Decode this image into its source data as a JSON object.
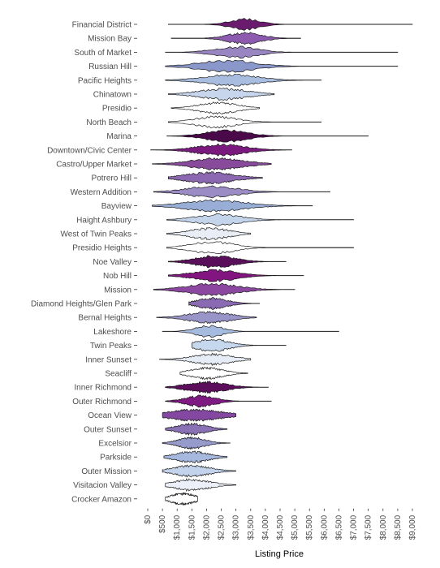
{
  "chart_data": {
    "type": "violin",
    "orientation": "horizontal",
    "xlabel": "Listing Price",
    "ylabel": "",
    "title": "",
    "xlim": [
      0,
      9000
    ],
    "x_ticks": [
      "$0",
      "$500",
      "$1,000",
      "$1,500",
      "$2,000",
      "$2,500",
      "$3,000",
      "$3,500",
      "$4,000",
      "$4,500",
      "$5,000",
      "$5,500",
      "$6,000",
      "$6,500",
      "$7,000",
      "$7,500",
      "$8,000",
      "$8,500",
      "$9,000"
    ],
    "x_tick_values": [
      0,
      500,
      1000,
      1500,
      2000,
      2500,
      3000,
      3500,
      4000,
      4500,
      5000,
      5500,
      6000,
      6500,
      7000,
      7500,
      8000,
      8500,
      9000
    ],
    "grid": false,
    "legend": "none",
    "categories": [
      {
        "name": "Financial District",
        "min": 700,
        "max": 9000,
        "center": 3300,
        "spread": 500,
        "color": "#6a1b6e"
      },
      {
        "name": "Mission Bay",
        "min": 800,
        "max": 5200,
        "center": 3300,
        "spread": 550,
        "color": "#8c5bb0"
      },
      {
        "name": "South of Market",
        "min": 600,
        "max": 8500,
        "center": 3000,
        "spread": 700,
        "color": "#9a85c3"
      },
      {
        "name": "Russian Hill",
        "min": 600,
        "max": 8500,
        "center": 2700,
        "spread": 900,
        "color": "#8a97cb"
      },
      {
        "name": "Pacific Heights",
        "min": 600,
        "max": 5900,
        "center": 2800,
        "spread": 900,
        "color": "#a8bde0"
      },
      {
        "name": "Chinatown",
        "min": 700,
        "max": 4300,
        "center": 2600,
        "spread": 800,
        "color": "#c7d6ec"
      },
      {
        "name": "Presidio",
        "min": 800,
        "max": 3800,
        "center": 2400,
        "spread": 650,
        "color": "#ffffff"
      },
      {
        "name": "North Beach",
        "min": 700,
        "max": 5900,
        "center": 2300,
        "spread": 700,
        "color": "#ffffff"
      },
      {
        "name": "Marina",
        "min": 650,
        "max": 7500,
        "center": 2700,
        "spread": 700,
        "color": "#4a0a4a"
      },
      {
        "name": "Downtown/Civic Center",
        "min": 100,
        "max": 4900,
        "center": 2500,
        "spread": 800,
        "color": "#7a1a7e"
      },
      {
        "name": "Castro/Upper Market",
        "min": 150,
        "max": 4200,
        "center": 2400,
        "spread": 850,
        "color": "#884b9c"
      },
      {
        "name": "Potrero Hill",
        "min": 700,
        "max": 3900,
        "center": 2100,
        "spread": 800,
        "color": "#8b68b1"
      },
      {
        "name": "Western Addition",
        "min": 200,
        "max": 6200,
        "center": 2200,
        "spread": 850,
        "color": "#9b8cc6"
      },
      {
        "name": "Bayview",
        "min": 150,
        "max": 5600,
        "center": 2300,
        "spread": 1000,
        "color": "#98aed6"
      },
      {
        "name": "Haight Ashbury",
        "min": 650,
        "max": 7000,
        "center": 2400,
        "spread": 750,
        "color": "#c4d5eb"
      },
      {
        "name": "West of Twin Peaks",
        "min": 650,
        "max": 3500,
        "center": 2100,
        "spread": 650,
        "color": "#e8edf6"
      },
      {
        "name": "Presidio Heights",
        "min": 650,
        "max": 7000,
        "center": 2200,
        "spread": 700,
        "color": "#ffffff"
      },
      {
        "name": "Noe Valley",
        "min": 700,
        "max": 4700,
        "center": 2300,
        "spread": 650,
        "color": "#5a0f5a"
      },
      {
        "name": "Nob Hill",
        "min": 700,
        "max": 5300,
        "center": 2300,
        "spread": 750,
        "color": "#82157f"
      },
      {
        "name": "Mission",
        "min": 200,
        "max": 5000,
        "center": 2200,
        "spread": 850,
        "color": "#8c48a0"
      },
      {
        "name": "Diamond Heights/Glen Park",
        "min": 1400,
        "max": 3800,
        "center": 2200,
        "spread": 500,
        "color": "#8a6ab2"
      },
      {
        "name": "Bernal Heights",
        "min": 300,
        "max": 3700,
        "center": 2100,
        "spread": 700,
        "color": "#9a95c9"
      },
      {
        "name": "Lakeshore",
        "min": 500,
        "max": 6500,
        "center": 2100,
        "spread": 450,
        "color": "#a6bbe0"
      },
      {
        "name": "Twin Peaks",
        "min": 1500,
        "max": 4700,
        "center": 2200,
        "spread": 550,
        "color": "#c6d8ee"
      },
      {
        "name": "Inner Sunset",
        "min": 400,
        "max": 3500,
        "center": 2200,
        "spread": 650,
        "color": "#e7edf7"
      },
      {
        "name": "Seacliff",
        "min": 1100,
        "max": 3400,
        "center": 2000,
        "spread": 550,
        "color": "#ffffff"
      },
      {
        "name": "Inner Richmond",
        "min": 600,
        "max": 4100,
        "center": 2000,
        "spread": 650,
        "color": "#5c0d5c"
      },
      {
        "name": "Outer Richmond",
        "min": 600,
        "max": 4200,
        "center": 1800,
        "spread": 500,
        "color": "#7e1a82"
      },
      {
        "name": "Ocean View",
        "min": 500,
        "max": 3000,
        "center": 1600,
        "spread": 900,
        "color": "#8548a2"
      },
      {
        "name": "Outer Sunset",
        "min": 600,
        "max": 2700,
        "center": 1500,
        "spread": 500,
        "color": "#8a70b5"
      },
      {
        "name": "Excelsior",
        "min": 500,
        "max": 2800,
        "center": 1500,
        "spread": 450,
        "color": "#979bcc"
      },
      {
        "name": "Parkside",
        "min": 550,
        "max": 2700,
        "center": 1500,
        "spread": 550,
        "color": "#a7b8df"
      },
      {
        "name": "Outer Mission",
        "min": 500,
        "max": 3000,
        "center": 1500,
        "spread": 600,
        "color": "#c3d3eb"
      },
      {
        "name": "Visitacion Valley",
        "min": 600,
        "max": 3000,
        "center": 1500,
        "spread": 600,
        "color": "#ecf0f8"
      },
      {
        "name": "Crocker Amazon",
        "min": 600,
        "max": 1700,
        "center": 1200,
        "spread": 400,
        "color": "#ffffff"
      }
    ]
  }
}
